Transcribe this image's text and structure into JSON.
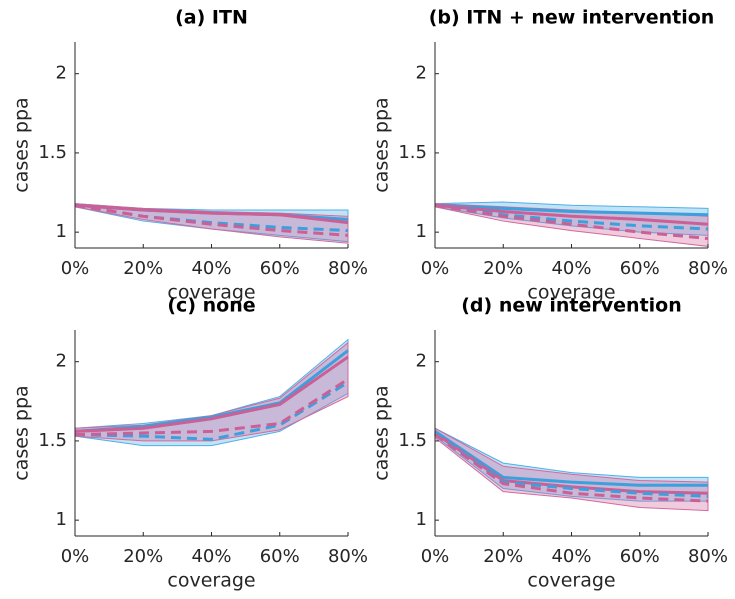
{
  "chart_data": [
    {
      "type": "line",
      "title": "(a) ITN",
      "xlabel": "coverage",
      "ylabel": "cases ppa",
      "x": [
        0,
        20,
        40,
        60,
        80
      ],
      "xlim": [
        0,
        80
      ],
      "xticks": [
        {
          "value": 0,
          "label": "0%"
        },
        {
          "value": 20,
          "label": "20%"
        },
        {
          "value": 40,
          "label": "40%"
        },
        {
          "value": 60,
          "label": "60%"
        },
        {
          "value": 80,
          "label": "80%"
        }
      ],
      "ylim": [
        0.9,
        2.2
      ],
      "yticks": [
        1,
        1.5,
        2
      ],
      "bands": [
        {
          "color": "#4fb0e6",
          "lower": [
            1.16,
            1.07,
            1.02,
            0.98,
            0.94
          ],
          "upper": [
            1.18,
            1.15,
            1.14,
            1.14,
            1.14
          ]
        },
        {
          "color": "#d26a9e",
          "lower": [
            1.16,
            1.08,
            1.02,
            0.97,
            0.93
          ],
          "upper": [
            1.18,
            1.15,
            1.13,
            1.12,
            1.1
          ]
        }
      ],
      "series": [
        {
          "color": "#3d9fdc",
          "dash": false,
          "values": [
            1.17,
            1.14,
            1.12,
            1.11,
            1.08
          ]
        },
        {
          "color": "#cc5f95",
          "dash": false,
          "values": [
            1.17,
            1.14,
            1.12,
            1.11,
            1.06
          ]
        },
        {
          "color": "#3d9fdc",
          "dash": true,
          "values": [
            1.17,
            1.1,
            1.06,
            1.03,
            1.01
          ]
        },
        {
          "color": "#cc5f95",
          "dash": true,
          "values": [
            1.17,
            1.1,
            1.05,
            1.01,
            0.98
          ]
        }
      ]
    },
    {
      "type": "line",
      "title": "(b) ITN + new intervention",
      "xlabel": "coverage",
      "ylabel": "cases ppa",
      "x": [
        0,
        20,
        40,
        60,
        80
      ],
      "xlim": [
        0,
        80
      ],
      "xticks": [
        {
          "value": 0,
          "label": "0%"
        },
        {
          "value": 20,
          "label": "20%"
        },
        {
          "value": 40,
          "label": "40%"
        },
        {
          "value": 60,
          "label": "60%"
        },
        {
          "value": 80,
          "label": "80%"
        }
      ],
      "ylim": [
        0.9,
        2.2
      ],
      "yticks": [
        1,
        1.5,
        2
      ],
      "bands": [
        {
          "color": "#4fb0e6",
          "lower": [
            1.16,
            1.09,
            1.04,
            1.0,
            0.98
          ],
          "upper": [
            1.18,
            1.19,
            1.17,
            1.16,
            1.15
          ]
        },
        {
          "color": "#d26a9e",
          "lower": [
            1.16,
            1.07,
            1.01,
            0.96,
            0.91
          ],
          "upper": [
            1.18,
            1.16,
            1.14,
            1.12,
            1.1
          ]
        }
      ],
      "series": [
        {
          "color": "#3d9fdc",
          "dash": false,
          "values": [
            1.17,
            1.15,
            1.13,
            1.12,
            1.11
          ]
        },
        {
          "color": "#cc5f95",
          "dash": false,
          "values": [
            1.17,
            1.13,
            1.1,
            1.08,
            1.05
          ]
        },
        {
          "color": "#3d9fdc",
          "dash": true,
          "values": [
            1.17,
            1.11,
            1.07,
            1.04,
            1.02
          ]
        },
        {
          "color": "#cc5f95",
          "dash": true,
          "values": [
            1.17,
            1.1,
            1.05,
            1.0,
            0.96
          ]
        }
      ]
    },
    {
      "type": "line",
      "title": "(c) none",
      "xlabel": "coverage",
      "ylabel": "cases ppa",
      "x": [
        0,
        20,
        40,
        60,
        80
      ],
      "xlim": [
        0,
        80
      ],
      "xticks": [
        {
          "value": 0,
          "label": "0%"
        },
        {
          "value": 20,
          "label": "20%"
        },
        {
          "value": 40,
          "label": "40%"
        },
        {
          "value": 60,
          "label": "60%"
        },
        {
          "value": 80,
          "label": "80%"
        }
      ],
      "ylim": [
        0.9,
        2.2
      ],
      "yticks": [
        1,
        1.5,
        2
      ],
      "bands": [
        {
          "color": "#4fb0e6",
          "lower": [
            1.53,
            1.47,
            1.47,
            1.56,
            1.8
          ],
          "upper": [
            1.58,
            1.61,
            1.66,
            1.78,
            2.14
          ]
        },
        {
          "color": "#d26a9e",
          "lower": [
            1.53,
            1.5,
            1.5,
            1.57,
            1.78
          ],
          "upper": [
            1.58,
            1.6,
            1.66,
            1.77,
            2.12
          ]
        }
      ],
      "series": [
        {
          "color": "#3d9fdc",
          "dash": false,
          "values": [
            1.56,
            1.59,
            1.65,
            1.74,
            2.07
          ]
        },
        {
          "color": "#cc5f95",
          "dash": false,
          "values": [
            1.56,
            1.58,
            1.64,
            1.73,
            2.03
          ]
        },
        {
          "color": "#3d9fdc",
          "dash": true,
          "values": [
            1.54,
            1.53,
            1.51,
            1.6,
            1.87
          ]
        },
        {
          "color": "#cc5f95",
          "dash": true,
          "values": [
            1.54,
            1.55,
            1.56,
            1.61,
            1.89
          ]
        }
      ]
    },
    {
      "type": "line",
      "title": "(d) new intervention",
      "xlabel": "coverage",
      "ylabel": "cases ppa",
      "x": [
        0,
        20,
        40,
        60,
        80
      ],
      "xlim": [
        0,
        80
      ],
      "xticks": [
        {
          "value": 0,
          "label": "0%"
        },
        {
          "value": 20,
          "label": "20%"
        },
        {
          "value": 40,
          "label": "40%"
        },
        {
          "value": 60,
          "label": "60%"
        },
        {
          "value": 80,
          "label": "80%"
        }
      ],
      "ylim": [
        0.9,
        2.2
      ],
      "yticks": [
        1,
        1.5,
        2
      ],
      "bands": [
        {
          "color": "#4fb0e6",
          "lower": [
            1.53,
            1.2,
            1.15,
            1.12,
            1.12
          ],
          "upper": [
            1.58,
            1.36,
            1.3,
            1.27,
            1.27
          ]
        },
        {
          "color": "#d26a9e",
          "lower": [
            1.52,
            1.18,
            1.14,
            1.08,
            1.06
          ],
          "upper": [
            1.58,
            1.34,
            1.29,
            1.25,
            1.24
          ]
        }
      ],
      "series": [
        {
          "color": "#3d9fdc",
          "dash": false,
          "values": [
            1.56,
            1.27,
            1.24,
            1.22,
            1.22
          ]
        },
        {
          "color": "#cc5f95",
          "dash": false,
          "values": [
            1.55,
            1.25,
            1.21,
            1.18,
            1.17
          ]
        },
        {
          "color": "#3d9fdc",
          "dash": true,
          "values": [
            1.55,
            1.24,
            1.2,
            1.17,
            1.15
          ]
        },
        {
          "color": "#cc5f95",
          "dash": true,
          "values": [
            1.54,
            1.23,
            1.17,
            1.14,
            1.12
          ]
        }
      ]
    }
  ]
}
